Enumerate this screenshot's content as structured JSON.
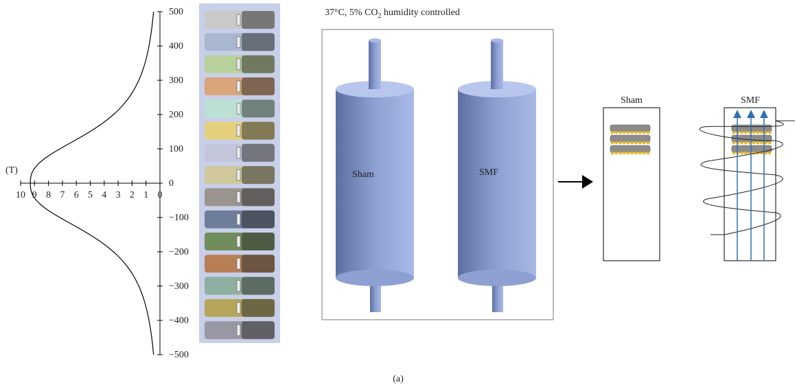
{
  "field_plot": {
    "unit_label": "(T)",
    "x_ticks": [
      "10",
      "9",
      "8",
      "7",
      "6",
      "5",
      "4",
      "3",
      "2",
      "1",
      "0"
    ],
    "y_ticks": [
      "500",
      "400",
      "300",
      "200",
      "100",
      "0",
      "−100",
      "−200",
      "−300",
      "−400",
      "−500"
    ]
  },
  "chamber": {
    "title": {
      "before": "37°C, 5% CO",
      "subscript": "2",
      "after": " humidity controlled"
    },
    "left_label": "Sham",
    "right_label": "SMF"
  },
  "dishes": {
    "sham_label": "Sham",
    "smf_label": "SMF"
  },
  "caption": "(a)"
}
